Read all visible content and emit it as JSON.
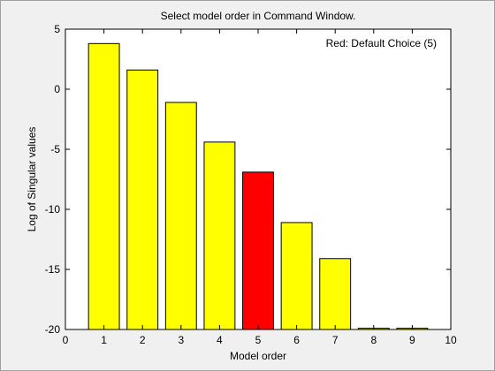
{
  "chart_data": {
    "type": "bar",
    "title": "Select model order in Command Window.",
    "xlabel": "Model order",
    "ylabel": "Log of Singular values",
    "annotation": "Red: Default Choice (5)",
    "categories": [
      1,
      2,
      3,
      4,
      5,
      6,
      7,
      8,
      9
    ],
    "values": [
      3.8,
      1.6,
      -1.1,
      -4.4,
      -6.9,
      -11.1,
      -14.1,
      -19.9,
      -19.9
    ],
    "highlight_index": 4,
    "colors": {
      "default": "#ffff00",
      "highlight": "#ff0000",
      "axes_bg": "#ffffff",
      "figure_bg": "#f0f0f0"
    },
    "xlim": [
      0,
      10
    ],
    "ylim": [
      -20,
      5
    ],
    "xticks": [
      0,
      1,
      2,
      3,
      4,
      5,
      6,
      7,
      8,
      9,
      10
    ],
    "yticks": [
      -20,
      -15,
      -10,
      -5,
      0,
      5
    ],
    "grid": false,
    "legend": "none"
  }
}
